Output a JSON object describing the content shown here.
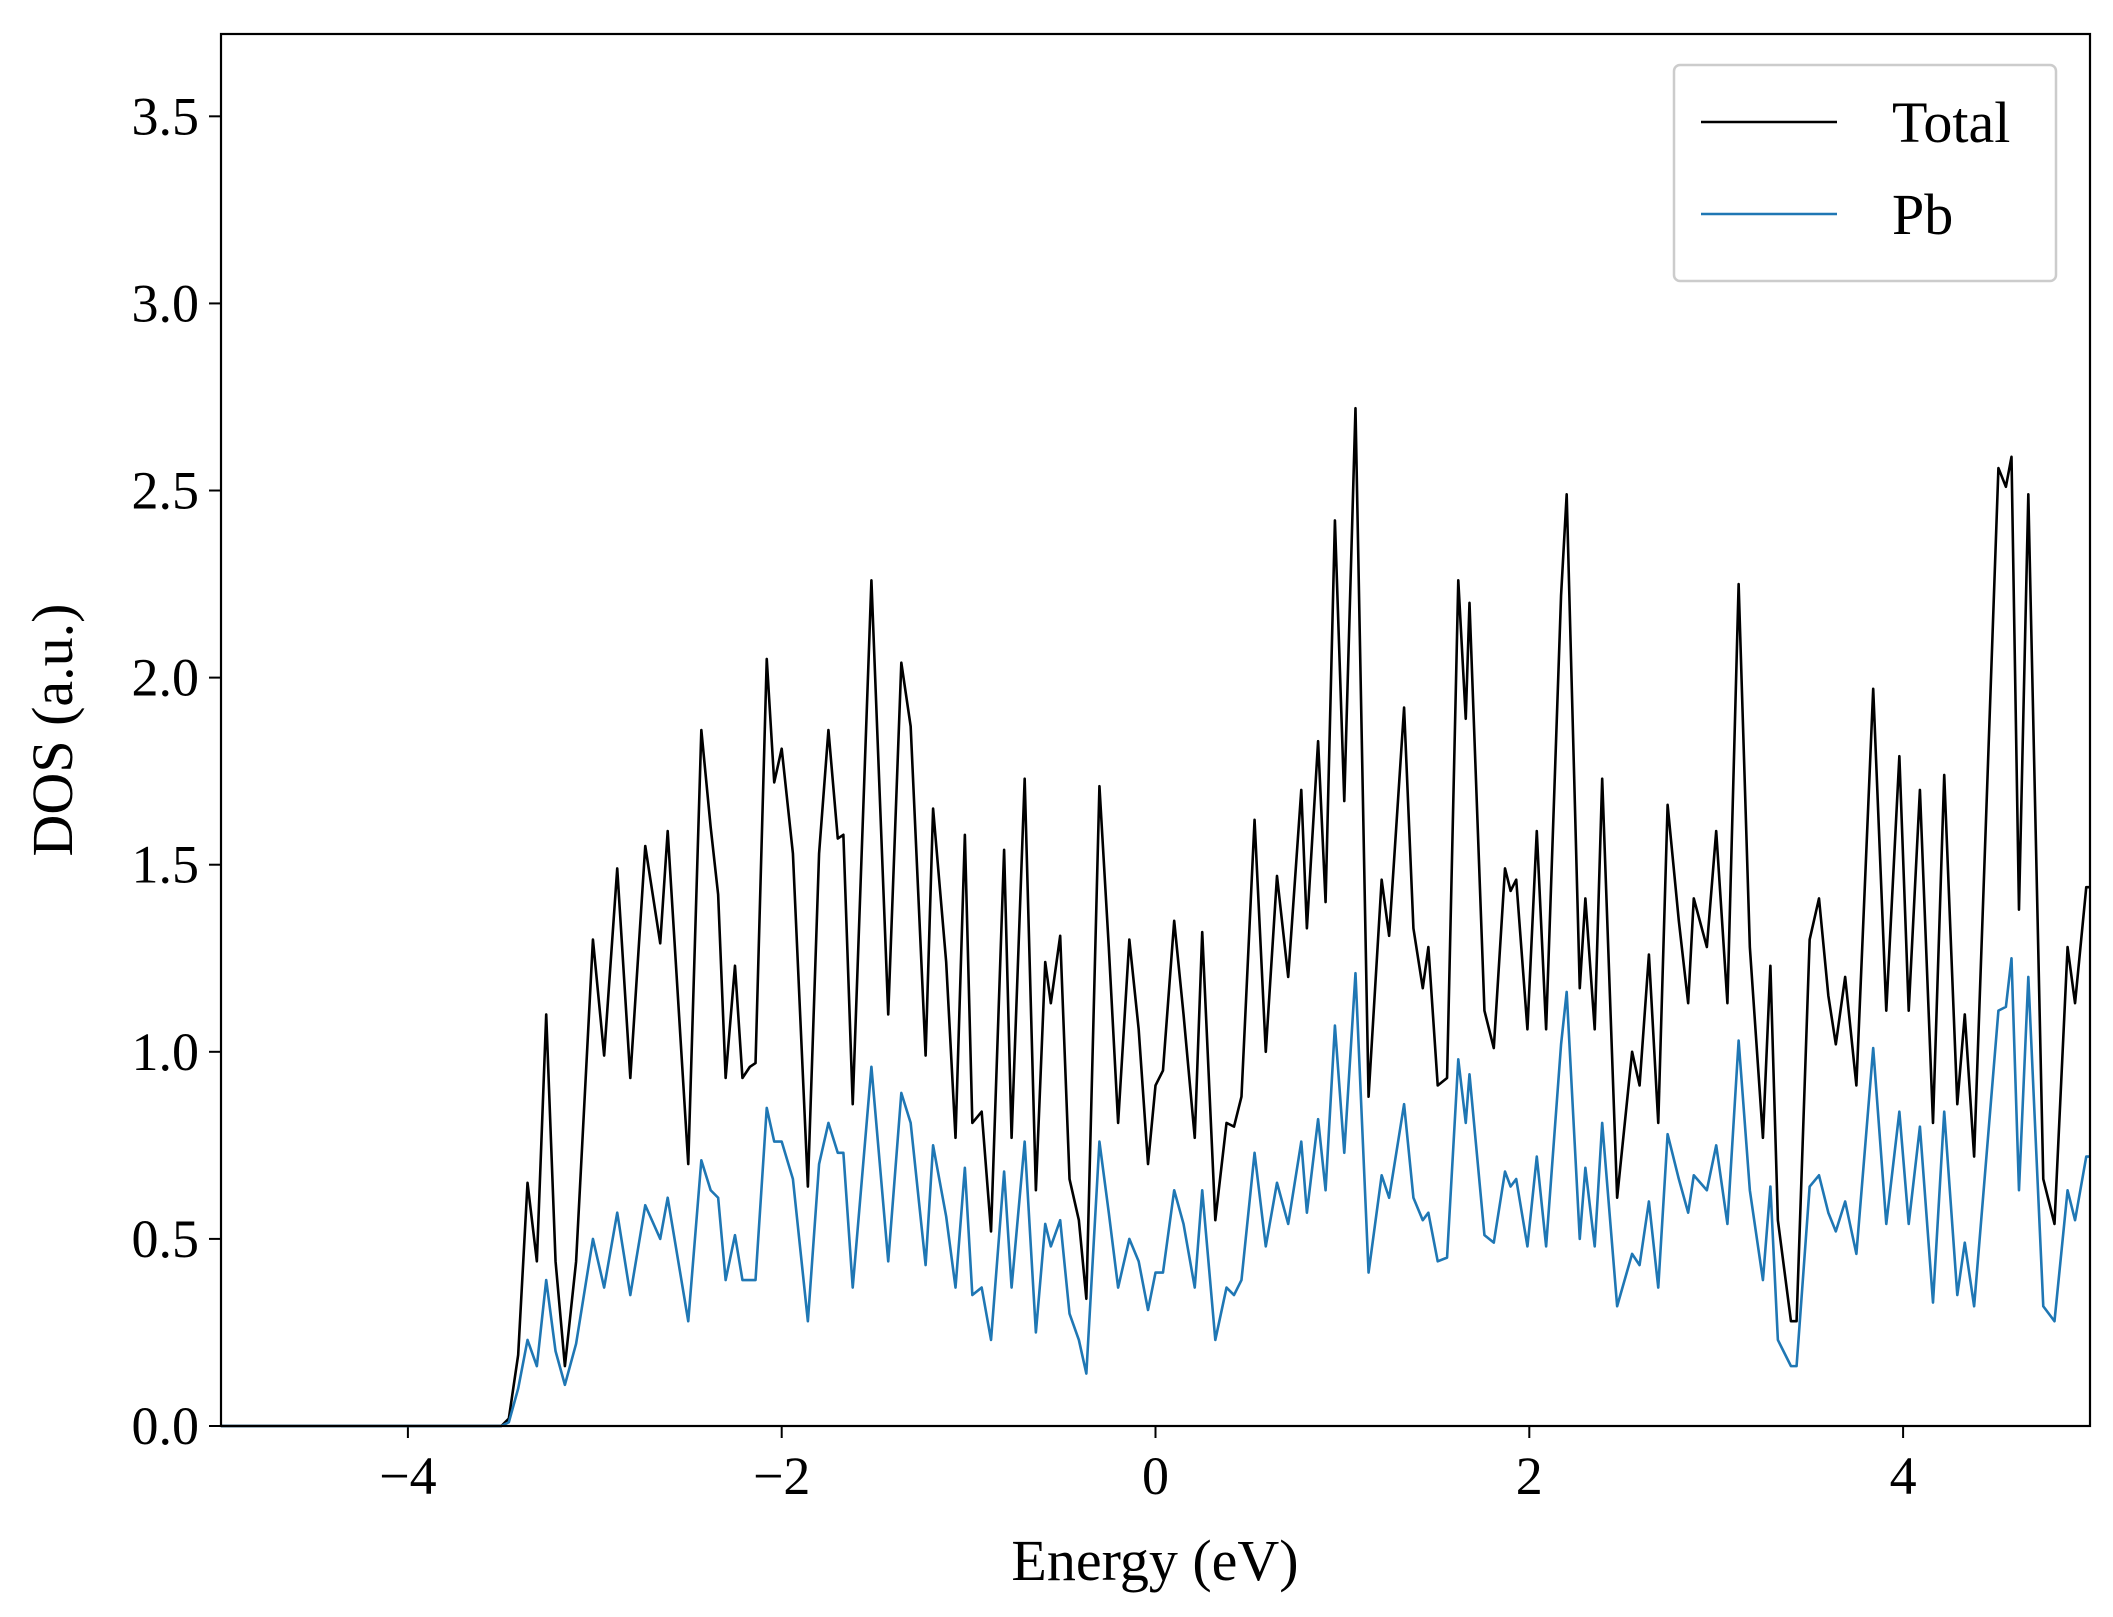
{
  "chart_data": {
    "type": "line",
    "xlabel": "Energy (eV)",
    "ylabel": "DOS (a.u.)",
    "xlim": [
      -5,
      5
    ],
    "ylim": [
      0,
      3.72
    ],
    "xticks": [
      {
        "value": -4,
        "label": "−4"
      },
      {
        "value": -2,
        "label": "−2"
      },
      0,
      2,
      4
    ],
    "yticks": [
      {
        "value": 0,
        "label": "0.0"
      },
      {
        "value": 0.5,
        "label": "0.5"
      },
      {
        "value": 1,
        "label": "1.0"
      },
      {
        "value": 1.5,
        "label": "1.5"
      },
      {
        "value": 2,
        "label": "2.0"
      },
      {
        "value": 2.5,
        "label": "2.5"
      },
      {
        "value": 3,
        "label": "3.0"
      },
      {
        "value": 3.5,
        "label": "3.5"
      }
    ],
    "legend": "upper right",
    "x": [
      -5,
      -3.5,
      -3.46,
      -3.41,
      -3.36,
      -3.31,
      -3.26,
      -3.21,
      -3.16,
      -3.1,
      -3.01,
      -2.95,
      -2.88,
      -2.81,
      -2.73,
      -2.65,
      -2.61,
      -2.5,
      -2.43,
      -2.38,
      -2.34,
      -2.3,
      -2.25,
      -2.21,
      -2.17,
      -2.14,
      -2.08,
      -2.04,
      -2.0,
      -1.94,
      -1.86,
      -1.8,
      -1.75,
      -1.7,
      -1.67,
      -1.62,
      -1.52,
      -1.43,
      -1.36,
      -1.31,
      -1.23,
      -1.19,
      -1.12,
      -1.07,
      -1.02,
      -0.98,
      -0.93,
      -0.88,
      -0.81,
      -0.77,
      -0.7,
      -0.64,
      -0.59,
      -0.56,
      -0.51,
      -0.46,
      -0.41,
      -0.37,
      -0.3,
      -0.25,
      -0.2,
      -0.14,
      -0.09,
      -0.04,
      0,
      0.04,
      0.1,
      0.15,
      0.21,
      0.25,
      0.32,
      0.38,
      0.42,
      0.46,
      0.53,
      0.59,
      0.65,
      0.71,
      0.78,
      0.81,
      0.87,
      0.91,
      0.96,
      1.01,
      1.07,
      1.14,
      1.21,
      1.25,
      1.33,
      1.38,
      1.43,
      1.46,
      1.51,
      1.56,
      1.62,
      1.66,
      1.68,
      1.76,
      1.81,
      1.87,
      1.9,
      1.93,
      1.99,
      2.04,
      2.09,
      2.17,
      2.2,
      2.27,
      2.3,
      2.35,
      2.39,
      2.47,
      2.55,
      2.59,
      2.64,
      2.69,
      2.74,
      2.8,
      2.85,
      2.88,
      2.95,
      3.0,
      3.06,
      3.12,
      3.18,
      3.25,
      3.29,
      3.33,
      3.4,
      3.43,
      3.5,
      3.55,
      3.6,
      3.64,
      3.69,
      3.75,
      3.84,
      3.91,
      3.98,
      4.03,
      4.09,
      4.16,
      4.22,
      4.29,
      4.33,
      4.38,
      4.51,
      4.55,
      4.58,
      4.62,
      4.67,
      4.75,
      4.81,
      4.88,
      4.92,
      4.98,
      5.0
    ],
    "series": [
      {
        "name": "Total",
        "color": "#000000",
        "values": [
          0,
          0,
          0.02,
          0.19,
          0.65,
          0.44,
          1.1,
          0.44,
          0.16,
          0.44,
          1.3,
          0.99,
          1.49,
          0.93,
          1.55,
          1.29,
          1.59,
          0.7,
          1.86,
          1.6,
          1.42,
          0.93,
          1.23,
          0.93,
          0.96,
          0.97,
          2.05,
          1.72,
          1.81,
          1.53,
          0.64,
          1.53,
          1.86,
          1.57,
          1.58,
          0.86,
          2.26,
          1.1,
          2.04,
          1.87,
          0.99,
          1.65,
          1.24,
          0.77,
          1.58,
          0.81,
          0.84,
          0.52,
          1.54,
          0.77,
          1.73,
          0.63,
          1.24,
          1.13,
          1.31,
          0.66,
          0.55,
          0.34,
          1.71,
          1.28,
          0.81,
          1.3,
          1.06,
          0.7,
          0.91,
          0.95,
          1.35,
          1.1,
          0.77,
          1.32,
          0.55,
          0.81,
          0.8,
          0.88,
          1.62,
          1.0,
          1.47,
          1.2,
          1.7,
          1.33,
          1.83,
          1.4,
          2.42,
          1.67,
          2.72,
          0.88,
          1.46,
          1.31,
          1.92,
          1.33,
          1.17,
          1.28,
          0.91,
          0.93,
          2.26,
          1.89,
          2.2,
          1.11,
          1.01,
          1.49,
          1.43,
          1.46,
          1.06,
          1.59,
          1.06,
          2.22,
          2.49,
          1.17,
          1.41,
          1.06,
          1.73,
          0.61,
          1.0,
          0.91,
          1.26,
          0.81,
          1.66,
          1.35,
          1.13,
          1.41,
          1.28,
          1.59,
          1.13,
          2.25,
          1.28,
          0.77,
          1.23,
          0.55,
          0.28,
          0.28,
          1.3,
          1.41,
          1.15,
          1.02,
          1.2,
          0.91,
          1.97,
          1.11,
          1.79,
          1.11,
          1.7,
          0.81,
          1.74,
          0.86,
          1.1,
          0.72,
          2.56,
          2.51,
          2.59,
          1.38,
          2.49,
          0.66,
          0.54,
          1.28,
          1.13,
          1.44,
          1.44
        ]
      },
      {
        "name": "Pb",
        "color": "#1f77b4",
        "values": [
          0,
          0,
          0.01,
          0.1,
          0.23,
          0.16,
          0.39,
          0.2,
          0.11,
          0.22,
          0.5,
          0.37,
          0.57,
          0.35,
          0.59,
          0.5,
          0.61,
          0.28,
          0.71,
          0.63,
          0.61,
          0.39,
          0.51,
          0.39,
          0.39,
          0.39,
          0.85,
          0.76,
          0.76,
          0.66,
          0.28,
          0.7,
          0.81,
          0.73,
          0.73,
          0.37,
          0.96,
          0.44,
          0.89,
          0.81,
          0.43,
          0.75,
          0.56,
          0.37,
          0.69,
          0.35,
          0.37,
          0.23,
          0.68,
          0.37,
          0.76,
          0.25,
          0.54,
          0.48,
          0.55,
          0.3,
          0.23,
          0.14,
          0.76,
          0.57,
          0.37,
          0.5,
          0.44,
          0.31,
          0.41,
          0.41,
          0.63,
          0.54,
          0.37,
          0.63,
          0.23,
          0.37,
          0.35,
          0.39,
          0.73,
          0.48,
          0.65,
          0.54,
          0.76,
          0.57,
          0.82,
          0.63,
          1.07,
          0.73,
          1.21,
          0.41,
          0.67,
          0.61,
          0.86,
          0.61,
          0.55,
          0.57,
          0.44,
          0.45,
          0.98,
          0.81,
          0.94,
          0.51,
          0.49,
          0.68,
          0.64,
          0.66,
          0.48,
          0.72,
          0.48,
          1.02,
          1.16,
          0.5,
          0.69,
          0.48,
          0.81,
          0.32,
          0.46,
          0.43,
          0.6,
          0.37,
          0.78,
          0.66,
          0.57,
          0.67,
          0.63,
          0.75,
          0.54,
          1.03,
          0.63,
          0.39,
          0.64,
          0.23,
          0.16,
          0.16,
          0.64,
          0.67,
          0.57,
          0.52,
          0.6,
          0.46,
          1.01,
          0.54,
          0.84,
          0.54,
          0.8,
          0.33,
          0.84,
          0.35,
          0.49,
          0.32,
          1.11,
          1.12,
          1.25,
          0.63,
          1.2,
          0.32,
          0.28,
          0.63,
          0.55,
          0.72,
          0.72
        ]
      }
    ]
  }
}
